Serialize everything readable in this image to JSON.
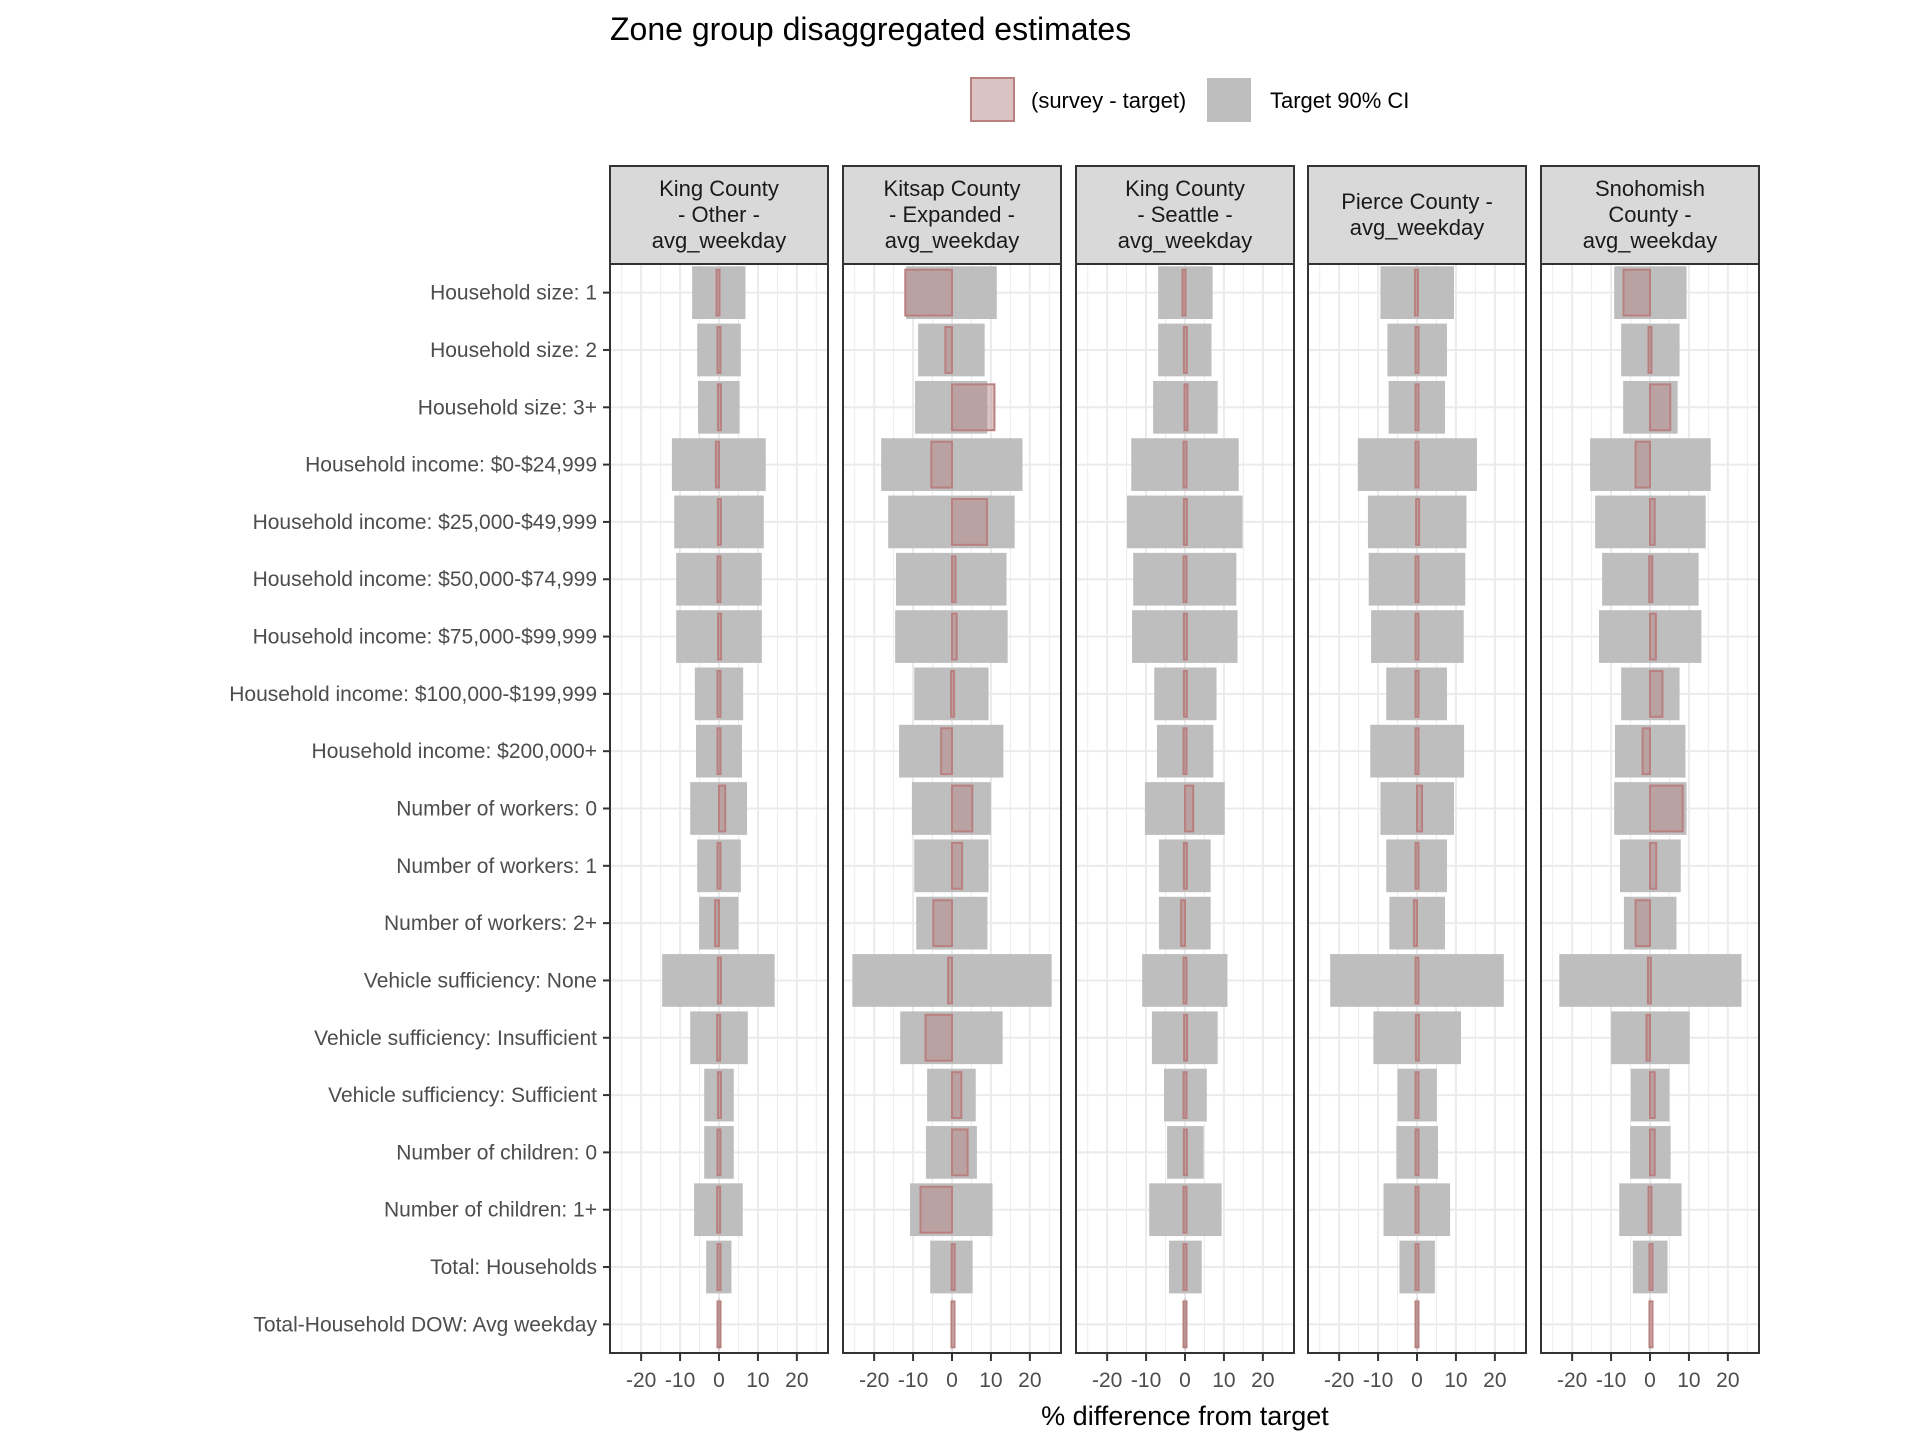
{
  "chart_data": {
    "type": "bar",
    "subtype": "faceted-horizontal-interval",
    "title": "Zone group disaggregated estimates",
    "xlabel": "% difference from target",
    "ylabel": "",
    "xlim": [
      -28,
      28
    ],
    "xticks": [
      -20,
      -10,
      0,
      10,
      20
    ],
    "xtick_labels": [
      "-20",
      "-10",
      "0",
      "10",
      "20"
    ],
    "grid": true,
    "legend": {
      "position": "top-right",
      "entries": [
        {
          "label": "(survey - target)",
          "fill": "#dcc3c3",
          "stroke": "#b98080"
        },
        {
          "label": "Target 90% CI",
          "fill": "#bebebe",
          "stroke": "none"
        }
      ]
    },
    "categories": [
      "Household size: 1",
      "Household size: 2",
      "Household size: 3+",
      "Household income: $0-$24,999",
      "Household income: $25,000-$49,999",
      "Household income: $50,000-$74,999",
      "Household income: $75,000-$99,999",
      "Household income: $100,000-$199,999",
      "Household income: $200,000+",
      "Number of workers: 0",
      "Number of workers: 1",
      "Number of workers: 2+",
      "Vehicle sufficiency: None",
      "Vehicle sufficiency: Insufficient",
      "Vehicle sufficiency: Sufficient",
      "Number of children: 0",
      "Number of children: 1+",
      "Total: Households",
      "Total-Household DOW: Avg weekday"
    ],
    "panels": [
      {
        "strip": [
          "King County",
          "- Other -",
          "avg_weekday"
        ],
        "ci_low": [
          -6.9,
          -5.6,
          -5.4,
          -12.1,
          -11.5,
          -11.0,
          -11.0,
          -6.2,
          -5.9,
          -7.4,
          -5.6,
          -5.1,
          -14.6,
          -7.4,
          -3.8,
          -3.8,
          -6.4,
          -3.3,
          -0.1
        ],
        "ci_high": [
          6.8,
          5.6,
          5.3,
          12.0,
          11.5,
          11.0,
          11.0,
          6.2,
          5.9,
          7.2,
          5.6,
          5.0,
          14.3,
          7.4,
          3.8,
          3.8,
          6.1,
          3.2,
          0.1
        ],
        "diff": [
          -0.5,
          0.0,
          0.2,
          -0.8,
          0.2,
          0.0,
          0.3,
          0.0,
          0.0,
          1.6,
          0.0,
          -1.0,
          0.2,
          -0.2,
          0.2,
          0.0,
          -0.2,
          0.0,
          0.0
        ]
      },
      {
        "strip": [
          "Kitsap County",
          "- Expanded -",
          "avg_weekday"
        ],
        "ci_low": [
          -11.8,
          -8.7,
          -9.5,
          -18.2,
          -16.4,
          -14.4,
          -14.6,
          -9.7,
          -13.6,
          -10.3,
          -9.7,
          -9.2,
          -25.6,
          -13.3,
          -6.4,
          -6.7,
          -10.8,
          -5.6,
          -0.1
        ],
        "ci_high": [
          11.5,
          8.4,
          9.1,
          18.1,
          16.1,
          14.0,
          14.3,
          9.4,
          13.2,
          10.0,
          9.4,
          9.1,
          25.6,
          13.0,
          6.1,
          6.4,
          10.4,
          5.3,
          0.1
        ],
        "diff": [
          -12.0,
          -1.7,
          10.9,
          -5.3,
          9.0,
          0.9,
          1.2,
          0.3,
          -2.8,
          5.2,
          2.6,
          -4.8,
          -1.0,
          -6.8,
          2.4,
          4.0,
          -8.1,
          0.6,
          0.5
        ]
      },
      {
        "strip": [
          "King County",
          "- Seattle -",
          "avg_weekday"
        ],
        "ci_low": [
          -6.9,
          -6.9,
          -8.2,
          -13.8,
          -14.9,
          -13.3,
          -13.6,
          -7.9,
          -7.2,
          -10.3,
          -6.7,
          -6.7,
          -11.0,
          -8.5,
          -5.4,
          -4.6,
          -9.2,
          -4.1,
          -0.1
        ],
        "ci_high": [
          7.1,
          6.8,
          8.4,
          13.8,
          14.8,
          13.2,
          13.5,
          8.1,
          7.3,
          10.2,
          6.6,
          6.6,
          10.9,
          8.4,
          5.6,
          4.8,
          9.4,
          4.3,
          0.1
        ],
        "diff": [
          -0.5,
          0.2,
          0.5,
          0.0,
          0.2,
          0.0,
          0.2,
          0.2,
          0.0,
          2.1,
          0.2,
          -1.0,
          0.0,
          0.3,
          0.0,
          0.2,
          0.0,
          0.0,
          0.0
        ]
      },
      {
        "strip": [
          "Pierce County -",
          "avg_weekday"
        ],
        "ci_low": [
          -9.4,
          -7.6,
          -7.3,
          -15.2,
          -12.6,
          -12.4,
          -11.8,
          -7.9,
          -12.0,
          -9.4,
          -7.9,
          -7.1,
          -22.3,
          -11.2,
          -5.0,
          -5.3,
          -8.6,
          -4.5,
          -0.1
        ],
        "ci_high": [
          9.5,
          7.7,
          7.2,
          15.4,
          12.7,
          12.4,
          12.0,
          7.7,
          12.1,
          9.5,
          7.7,
          7.2,
          22.3,
          11.3,
          5.1,
          5.4,
          8.5,
          4.6,
          0.1
        ],
        "diff": [
          -0.3,
          0.0,
          0.0,
          0.0,
          0.3,
          0.0,
          0.0,
          0.0,
          0.0,
          1.3,
          0.0,
          -0.8,
          0.0,
          0.2,
          0.0,
          0.0,
          0.0,
          0.0,
          0.0
        ]
      },
      {
        "strip": [
          "Snohomish",
          "County -",
          "avg_weekday"
        ],
        "ci_low": [
          -9.2,
          -7.4,
          -6.9,
          -15.4,
          -14.1,
          -12.3,
          -13.1,
          -7.4,
          -9.0,
          -9.2,
          -7.7,
          -6.7,
          -23.3,
          -10.0,
          -4.9,
          -5.1,
          -7.9,
          -4.4,
          -0.1
        ],
        "ci_high": [
          9.4,
          7.6,
          7.1,
          15.6,
          14.3,
          12.5,
          13.2,
          7.6,
          9.1,
          9.4,
          7.9,
          6.8,
          23.5,
          10.2,
          5.0,
          5.3,
          8.1,
          4.5,
          0.1
        ],
        "diff": [
          -6.8,
          0.0,
          5.2,
          -3.7,
          1.2,
          0.4,
          1.5,
          3.2,
          -1.9,
          8.4,
          1.6,
          -3.7,
          -0.3,
          -0.9,
          1.2,
          1.2,
          0.0,
          0.5,
          0.5
        ]
      }
    ]
  }
}
